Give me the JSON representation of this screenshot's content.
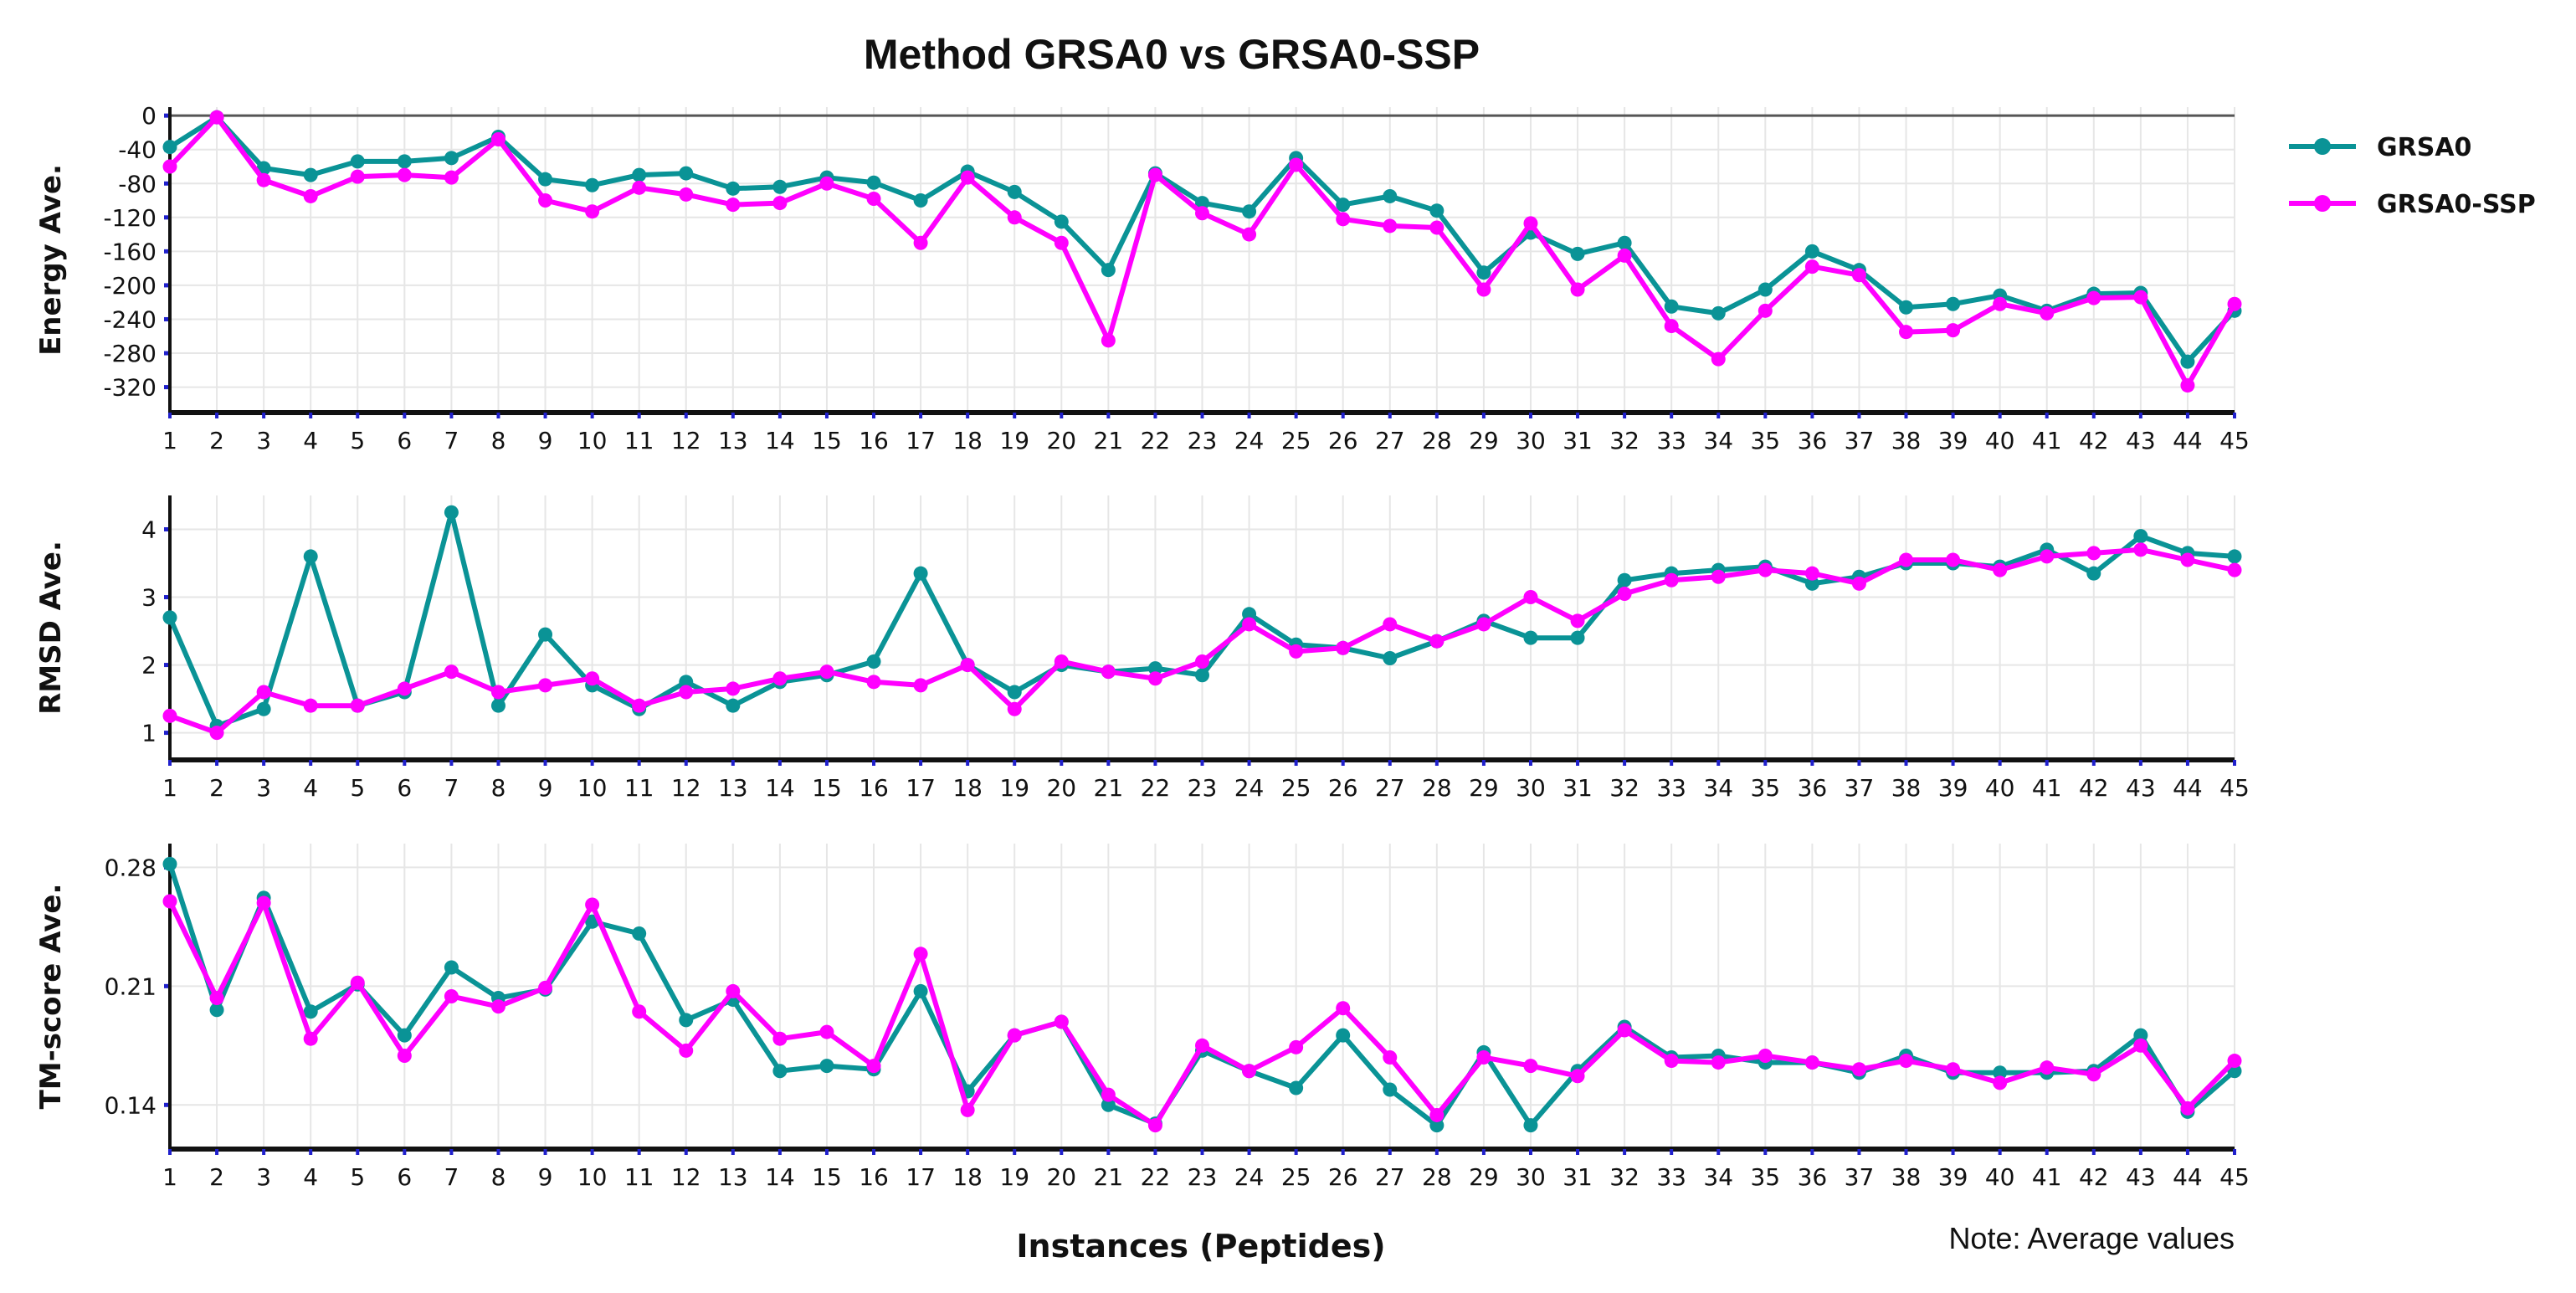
{
  "chart_data": {
    "type": "line",
    "title": "Method GRSA0 vs GRSA0-SSP",
    "xlabel": "Instances (Peptides)",
    "note": "Note: Average values",
    "colors": {
      "GRSA0": "#0a9396",
      "GRSA0-SSP": "#ff00ff"
    },
    "legend": {
      "position": "top-right",
      "entries": [
        "GRSA0",
        "GRSA0-SSP"
      ]
    },
    "x": [
      1,
      2,
      3,
      4,
      5,
      6,
      7,
      8,
      9,
      10,
      11,
      12,
      13,
      14,
      15,
      16,
      17,
      18,
      19,
      20,
      21,
      22,
      23,
      24,
      25,
      26,
      27,
      28,
      29,
      30,
      31,
      32,
      33,
      34,
      35,
      36,
      37,
      38,
      39,
      40,
      41,
      42,
      43,
      44,
      45
    ],
    "panels": [
      {
        "id": "energy",
        "ylabel": "Energy Ave.",
        "ylim": [
          -350,
          10
        ],
        "yticks": [
          0,
          -40,
          -80,
          -120,
          -160,
          -200,
          -240,
          -280,
          -320
        ],
        "ref_line": 0,
        "series": [
          {
            "name": "GRSA0",
            "values": [
              -37,
              -2,
              -62,
              -70,
              -54,
              -54,
              -50,
              -25,
              -75,
              -82,
              -70,
              -68,
              -86,
              -84,
              -73,
              -79,
              -100,
              -66,
              -90,
              -125,
              -182,
              -68,
              -103,
              -113,
              -50,
              -105,
              -95,
              -112,
              -185,
              -138,
              -163,
              -150,
              -225,
              -233,
              -205,
              -160,
              -182,
              -226,
              -222,
              -212,
              -230,
              -210,
              -209,
              -290,
              -230
            ]
          },
          {
            "name": "GRSA0-SSP",
            "values": [
              -60,
              -2,
              -76,
              -95,
              -72,
              -70,
              -73,
              -28,
              -100,
              -113,
              -85,
              -93,
              -105,
              -103,
              -80,
              -98,
              -150,
              -73,
              -120,
              -150,
              -265,
              -70,
              -115,
              -140,
              -58,
              -122,
              -130,
              -132,
              -205,
              -127,
              -205,
              -165,
              -248,
              -287,
              -230,
              -178,
              -188,
              -255,
              -253,
              -222,
              -233,
              -215,
              -214,
              -318,
              -222
            ]
          }
        ]
      },
      {
        "id": "rmsd",
        "ylabel": "RMSD Ave.",
        "ylim": [
          0.6,
          4.5
        ],
        "yticks": [
          1,
          2,
          3,
          4
        ],
        "series": [
          {
            "name": "GRSA0",
            "values": [
              2.7,
              1.1,
              1.35,
              3.6,
              1.4,
              1.6,
              4.25,
              1.4,
              2.45,
              1.7,
              1.35,
              1.75,
              1.4,
              1.75,
              1.85,
              2.05,
              3.35,
              2.0,
              1.6,
              2.0,
              1.9,
              1.95,
              1.85,
              2.75,
              2.3,
              2.25,
              2.1,
              2.35,
              2.65,
              2.4,
              2.4,
              3.25,
              3.35,
              3.4,
              3.45,
              3.2,
              3.3,
              3.5,
              3.5,
              3.45,
              3.7,
              3.35,
              3.9,
              3.65,
              3.6
            ]
          },
          {
            "name": "GRSA0-SSP",
            "values": [
              1.25,
              1.0,
              1.6,
              1.4,
              1.4,
              1.65,
              1.9,
              1.6,
              1.7,
              1.8,
              1.4,
              1.6,
              1.65,
              1.8,
              1.9,
              1.75,
              1.7,
              2.0,
              1.35,
              2.05,
              1.9,
              1.8,
              2.05,
              2.6,
              2.2,
              2.25,
              2.6,
              2.35,
              2.6,
              3.0,
              2.65,
              3.05,
              3.25,
              3.3,
              3.4,
              3.35,
              3.2,
              3.55,
              3.55,
              3.4,
              3.6,
              3.65,
              3.7,
              3.55,
              3.4
            ]
          }
        ]
      },
      {
        "id": "tmscore",
        "ylabel": "TM-score Ave.",
        "ylim": [
          0.114,
          0.294
        ],
        "yticks": [
          0.28,
          0.21,
          0.14
        ],
        "ytick_labels": [
          "0.28",
          "0.21",
          "0.14"
        ],
        "series": [
          {
            "name": "GRSA0",
            "values": [
              0.282,
              0.196,
              0.262,
              0.195,
              0.211,
              0.181,
              0.221,
              0.203,
              0.208,
              0.248,
              0.241,
              0.19,
              0.202,
              0.16,
              0.163,
              0.161,
              0.207,
              0.148,
              0.181,
              0.189,
              0.14,
              0.129,
              0.172,
              0.16,
              0.15,
              0.181,
              0.149,
              0.128,
              0.171,
              0.128,
              0.16,
              0.186,
              0.168,
              0.169,
              0.165,
              0.165,
              0.159,
              0.169,
              0.159,
              0.159,
              0.159,
              0.16,
              0.181,
              0.136,
              0.16
            ]
          },
          {
            "name": "GRSA0-SSP",
            "values": [
              0.26,
              0.203,
              0.259,
              0.179,
              0.212,
              0.169,
              0.204,
              0.198,
              0.209,
              0.258,
              0.195,
              0.172,
              0.207,
              0.179,
              0.183,
              0.163,
              0.229,
              0.137,
              0.181,
              0.189,
              0.146,
              0.128,
              0.175,
              0.16,
              0.174,
              0.197,
              0.168,
              0.134,
              0.168,
              0.163,
              0.157,
              0.184,
              0.166,
              0.165,
              0.169,
              0.165,
              0.161,
              0.166,
              0.161,
              0.153,
              0.162,
              0.158,
              0.175,
              0.138,
              0.166
            ]
          }
        ]
      }
    ]
  }
}
